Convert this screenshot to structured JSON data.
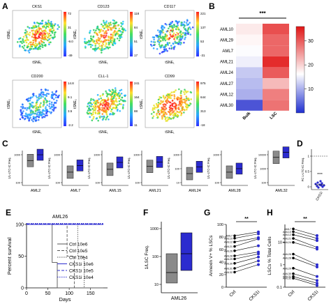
{
  "panel_letters": [
    "A",
    "B",
    "C",
    "D",
    "E",
    "F",
    "G",
    "H"
  ],
  "tsne": {
    "xlabel": "tSNE₁",
    "ylabel": "tSNE₂",
    "plots": [
      {
        "title": "CKS1",
        "ticks": [
          "72",
          "31",
          "-9.0",
          "-49"
        ]
      },
      {
        "title": "CD123",
        "ticks": [
          "118",
          "84",
          "51",
          "17"
        ]
      },
      {
        "title": "CD117",
        "ticks": [
          "221",
          "137",
          "53",
          "-31"
        ]
      },
      {
        "title": "CD200",
        "ticks": [
          "14.8",
          "9.1",
          "3.5",
          "-2.2"
        ]
      },
      {
        "title": "CLL-1",
        "ticks": [
          "241",
          "164",
          "88",
          "11"
        ]
      },
      {
        "title": "CD99",
        "ticks": [
          "975",
          "644",
          "313",
          "-18"
        ]
      }
    ]
  },
  "heatmap": {
    "rows": [
      "AML10",
      "AML29",
      "AML7",
      "AML21",
      "AML24",
      "AML27",
      "AML12",
      "AML30"
    ],
    "cols": [
      "Bulk",
      "LSC"
    ],
    "values": [
      [
        18,
        31
      ],
      [
        17,
        29
      ],
      [
        16,
        29
      ],
      [
        15,
        34
      ],
      [
        12,
        30
      ],
      [
        11,
        22
      ],
      [
        10,
        27
      ],
      [
        3,
        28
      ]
    ],
    "colorbar_ticks": [
      "30",
      "20",
      "10"
    ],
    "significance": "***"
  },
  "panel_c": {
    "ylabel": "1/L-LTC-IC Freq.",
    "samples": [
      {
        "name": "AML2",
        "ticks": [
          "1000",
          "100"
        ]
      },
      {
        "name": "AML7",
        "ticks": [
          "1000",
          "100"
        ]
      },
      {
        "name": "AML15",
        "ticks": [
          "1000",
          "100"
        ]
      },
      {
        "name": "AML21",
        "ticks": [
          "1000",
          "100"
        ]
      },
      {
        "name": "AML24",
        "ticks": [
          "1000",
          "100",
          "10"
        ]
      },
      {
        "name": "AML28",
        "ticks": [
          "1000",
          "100"
        ]
      },
      {
        "name": "AML32",
        "ticks": [
          "10000",
          "1000",
          "100"
        ]
      }
    ]
  },
  "panel_d": {
    "ylabel": "FC L-LTC-IC Freq.",
    "xlabel": "CKS1i",
    "ticks": [
      "1",
      "0.5",
      "0"
    ],
    "significance": "****"
  },
  "panel_e": {
    "title": "AML26",
    "xlabel": "Days",
    "ylabel": "Percent survival",
    "xticks": [
      "0",
      "50",
      "100",
      "150"
    ],
    "yticks": [
      "100",
      "50",
      "0"
    ],
    "legend": [
      "Ctrl 10e6",
      "Ctrl 10e5",
      "Ctrl 10e4",
      "CKS1i 10e6",
      "CKS1i 10e5",
      "CKS1i 10e4"
    ]
  },
  "panel_f": {
    "ylabel": "1/LSC Freq.",
    "xlabel": "AML26",
    "ticks": [
      "1000",
      "100",
      "10"
    ]
  },
  "panel_g": {
    "ylabel": "Annexin V+ % LSCs",
    "xticks": [
      "Ctrl",
      "CKS1i"
    ],
    "yticks": [
      "100",
      "80",
      "60",
      "40",
      "20",
      "0"
    ],
    "samples": [
      "AML7",
      "AML10",
      "AML12",
      "AML21",
      "AML26",
      "AML28",
      "AML29",
      "AML30",
      "AML31",
      "AML32"
    ],
    "significance": "**"
  },
  "panel_h": {
    "ylabel": "LSCs % Total Cells",
    "xticks": [
      "Ctrl",
      "CKS1i"
    ],
    "yticks": [
      "10",
      "1",
      "0.1"
    ],
    "samples": [
      "AML7",
      "AML10",
      "AML12",
      "AML21",
      "AML24",
      "AML26",
      "AML28",
      "AML29",
      "AML30",
      "AML31",
      "AML32"
    ],
    "significance": "**"
  },
  "chart_data": [
    {
      "type": "heatmap",
      "rows": [
        "AML10",
        "AML29",
        "AML7",
        "AML21",
        "AML24",
        "AML27",
        "AML12",
        "AML30"
      ],
      "cols": [
        "Bulk",
        "LSC"
      ],
      "values": [
        [
          18,
          31
        ],
        [
          17,
          29
        ],
        [
          16,
          29
        ],
        [
          15,
          34
        ],
        [
          12,
          30
        ],
        [
          11,
          22
        ],
        [
          10,
          27
        ],
        [
          3,
          28
        ]
      ],
      "colorbar_ticks": [
        30,
        20,
        10
      ]
    },
    {
      "type": "box",
      "ylabel": "1/L-LTC-IC Freq.",
      "categories": [
        "AML2",
        "AML7",
        "AML15",
        "AML21",
        "AML24",
        "AML28",
        "AML32"
      ],
      "series": [
        {
          "name": "Ctrl",
          "values": [
            800,
            80,
            140,
            250,
            60,
            80,
            1500
          ]
        },
        {
          "name": "CKS1i",
          "values": [
            2500,
            300,
            550,
            600,
            230,
            160,
            4000
          ]
        }
      ]
    },
    {
      "type": "line",
      "title": "AML26",
      "xlabel": "Days",
      "ylabel": "Percent survival",
      "xlim": [
        0,
        180
      ],
      "ylim": [
        0,
        100
      ],
      "series": [
        {
          "name": "Ctrl 10e6",
          "x": [
            0,
            60,
            60,
            72,
            72,
            180
          ],
          "y": [
            100,
            100,
            40,
            40,
            0,
            0
          ]
        },
        {
          "name": "Ctrl 10e5",
          "x": [
            0,
            95,
            95,
            112,
            112,
            180
          ],
          "y": [
            100,
            100,
            50,
            50,
            0,
            0
          ]
        },
        {
          "name": "Ctrl 10e4",
          "x": [
            0,
            120,
            120,
            135,
            135,
            180
          ],
          "y": [
            100,
            100,
            50,
            50,
            0,
            0
          ]
        },
        {
          "name": "CKS1i 10e6",
          "x": [
            0,
            180
          ],
          "y": [
            100,
            100
          ]
        },
        {
          "name": "CKS1i 10e5",
          "x": [
            0,
            180
          ],
          "y": [
            100,
            100
          ]
        },
        {
          "name": "CKS1i 10e4",
          "x": [
            0,
            180
          ],
          "y": [
            100,
            100
          ]
        }
      ]
    },
    {
      "type": "line",
      "ylabel": "Annexin V+ % LSCs",
      "categories": [
        "Ctrl",
        "CKS1i"
      ],
      "ylim": [
        0,
        100
      ],
      "series": [
        {
          "name": "AML7",
          "values": [
            82,
            88
          ]
        },
        {
          "name": "AML10",
          "values": [
            78,
            85
          ]
        },
        {
          "name": "AML12",
          "values": [
            72,
            79
          ]
        },
        {
          "name": "AML21",
          "values": [
            65,
            77
          ]
        },
        {
          "name": "AML26",
          "values": [
            58,
            66
          ]
        },
        {
          "name": "AML28",
          "values": [
            50,
            56
          ]
        },
        {
          "name": "AML29",
          "values": [
            45,
            53
          ]
        },
        {
          "name": "AML30",
          "values": [
            38,
            48
          ]
        },
        {
          "name": "AML31",
          "values": [
            30,
            42
          ]
        },
        {
          "name": "AML32",
          "values": [
            24,
            36
          ]
        }
      ]
    },
    {
      "type": "line",
      "ylabel": "LSCs % Total Cells",
      "categories": [
        "Ctrl",
        "CKS1i"
      ],
      "series": [
        {
          "name": "AML7",
          "values": [
            40,
            20
          ]
        },
        {
          "name": "AML10",
          "values": [
            30,
            15
          ]
        },
        {
          "name": "AML12",
          "values": [
            22,
            12
          ]
        },
        {
          "name": "AML21",
          "values": [
            15,
            6
          ]
        },
        {
          "name": "AML24",
          "values": [
            10,
            5
          ]
        },
        {
          "name": "AML26",
          "values": [
            3,
            1
          ]
        },
        {
          "name": "AML28",
          "values": [
            2,
            0.8
          ]
        },
        {
          "name": "AML29",
          "values": [
            0.7,
            0.3
          ]
        },
        {
          "name": "AML30",
          "values": [
            0.4,
            0.2
          ]
        },
        {
          "name": "AML31",
          "values": [
            0.3,
            0.15
          ]
        },
        {
          "name": "AML32",
          "values": [
            0.25,
            0.12
          ]
        }
      ]
    }
  ]
}
